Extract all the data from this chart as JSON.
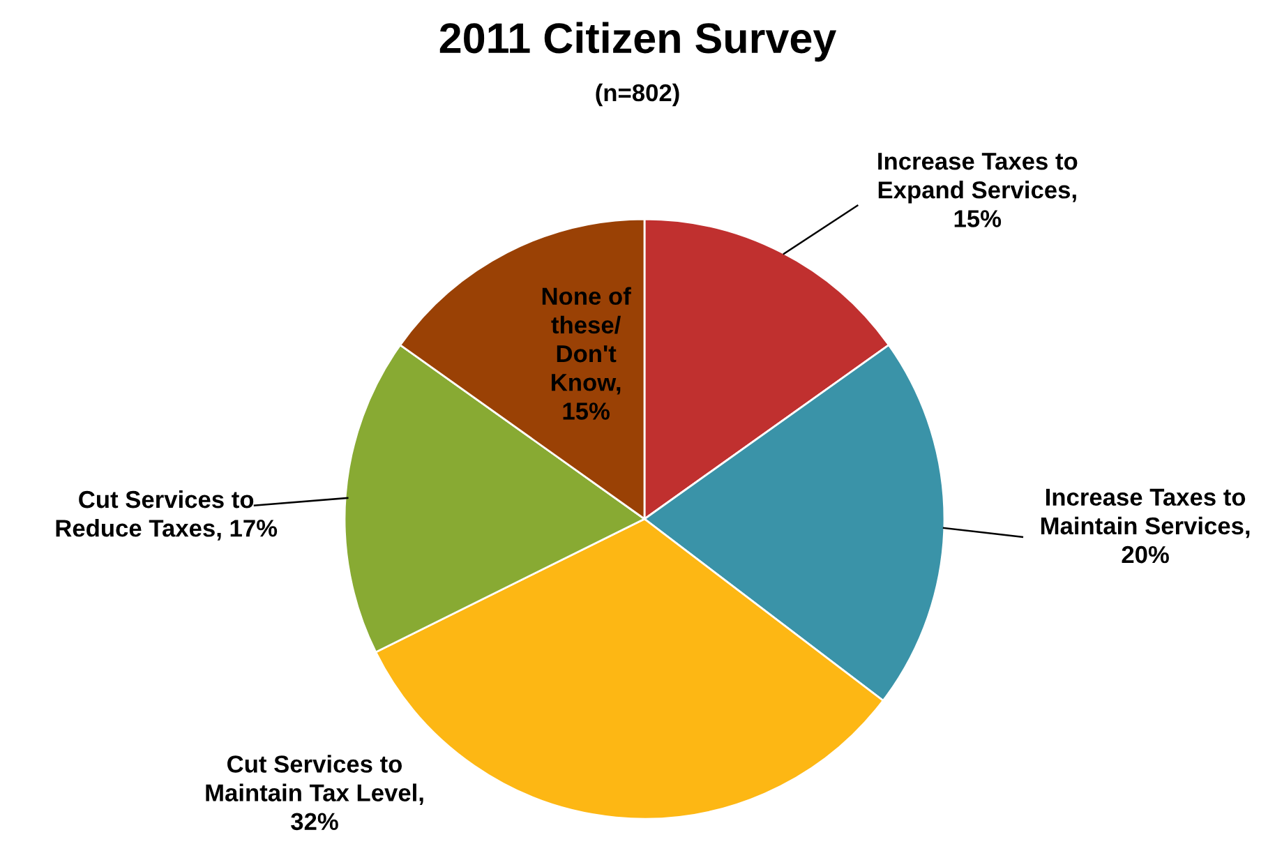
{
  "chart_data": {
    "type": "pie",
    "title": "2011 Citizen Survey",
    "subtitle": "(n=802)",
    "categories": [
      "Increase Taxes to\nExpand Services,\n15%",
      "Increase Taxes to\nMaintain Services,\n20%",
      "Cut Services to\nMaintain Tax Level,\n32%",
      "Cut Services to\nReduce Taxes, 17%",
      "None of\nthese/\nDon't\nKnow,\n15%"
    ],
    "values": [
      15,
      20,
      32,
      17,
      15
    ],
    "colors": [
      "#c0302f",
      "#3a93a8",
      "#fdb714",
      "#88aa33",
      "#9a4105"
    ]
  }
}
